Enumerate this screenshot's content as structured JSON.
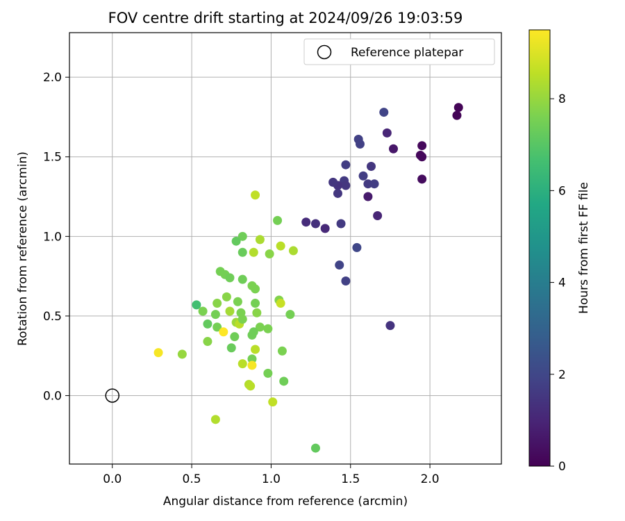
{
  "chart_data": {
    "type": "scatter",
    "title": "FOV centre drift starting at 2024/09/26 19:03:59",
    "xlabel": "Angular distance from reference (arcmin)",
    "ylabel": "Rotation from reference (arcmin)",
    "xlim": [
      -0.27,
      2.45
    ],
    "ylim": [
      -0.43,
      2.28
    ],
    "xticks": [
      "0.0",
      "0.5",
      "1.0",
      "1.5",
      "2.0"
    ],
    "yticks": [
      "0.0",
      "0.5",
      "1.0",
      "1.5",
      "2.0"
    ],
    "grid": true,
    "legend": {
      "placement": "top-right",
      "entries": [
        "Reference platepar"
      ]
    },
    "reference_point": {
      "x": 0.0,
      "y": 0.0
    },
    "colorbar": {
      "label": "Hours from first FF file",
      "range": [
        0,
        9.5
      ],
      "ticks": [
        "0",
        "2",
        "4",
        "6",
        "8"
      ],
      "colormap": "viridis"
    },
    "points": [
      {
        "x": 2.18,
        "y": 1.81,
        "h": 0.1
      },
      {
        "x": 2.17,
        "y": 1.76,
        "h": 0.1
      },
      {
        "x": 1.95,
        "y": 1.57,
        "h": 0.2
      },
      {
        "x": 1.94,
        "y": 1.51,
        "h": 0.2
      },
      {
        "x": 1.95,
        "y": 1.5,
        "h": 0.2
      },
      {
        "x": 1.95,
        "y": 1.36,
        "h": 0.3
      },
      {
        "x": 1.77,
        "y": 1.55,
        "h": 0.6
      },
      {
        "x": 1.73,
        "y": 1.65,
        "h": 1.0
      },
      {
        "x": 1.71,
        "y": 1.78,
        "h": 1.9
      },
      {
        "x": 1.61,
        "y": 1.25,
        "h": 0.7
      },
      {
        "x": 1.67,
        "y": 1.13,
        "h": 1.0
      },
      {
        "x": 1.75,
        "y": 0.44,
        "h": 1.4
      },
      {
        "x": 1.55,
        "y": 1.61,
        "h": 1.8
      },
      {
        "x": 1.56,
        "y": 1.58,
        "h": 1.8
      },
      {
        "x": 1.58,
        "y": 1.38,
        "h": 1.7
      },
      {
        "x": 1.63,
        "y": 1.44,
        "h": 1.5
      },
      {
        "x": 1.61,
        "y": 1.33,
        "h": 1.6
      },
      {
        "x": 1.65,
        "y": 1.33,
        "h": 1.7
      },
      {
        "x": 1.47,
        "y": 1.45,
        "h": 1.7
      },
      {
        "x": 1.46,
        "y": 1.35,
        "h": 1.6
      },
      {
        "x": 1.47,
        "y": 1.32,
        "h": 1.5
      },
      {
        "x": 1.42,
        "y": 1.32,
        "h": 1.4
      },
      {
        "x": 1.39,
        "y": 1.34,
        "h": 1.5
      },
      {
        "x": 1.42,
        "y": 1.27,
        "h": 1.5
      },
      {
        "x": 1.22,
        "y": 1.09,
        "h": 1.2
      },
      {
        "x": 1.28,
        "y": 1.08,
        "h": 1.3
      },
      {
        "x": 1.34,
        "y": 1.05,
        "h": 1.1
      },
      {
        "x": 1.44,
        "y": 1.08,
        "h": 1.6
      },
      {
        "x": 1.54,
        "y": 0.93,
        "h": 2.0
      },
      {
        "x": 1.43,
        "y": 0.82,
        "h": 1.9
      },
      {
        "x": 1.47,
        "y": 0.72,
        "h": 1.8
      },
      {
        "x": 0.9,
        "y": 1.26,
        "h": 8.6
      },
      {
        "x": 1.04,
        "y": 1.1,
        "h": 7.5
      },
      {
        "x": 0.82,
        "y": 1.0,
        "h": 7.4
      },
      {
        "x": 0.78,
        "y": 0.97,
        "h": 7.2
      },
      {
        "x": 0.93,
        "y": 0.98,
        "h": 8.3
      },
      {
        "x": 0.82,
        "y": 0.9,
        "h": 7.3
      },
      {
        "x": 0.89,
        "y": 0.9,
        "h": 8.4
      },
      {
        "x": 0.99,
        "y": 0.89,
        "h": 7.8
      },
      {
        "x": 1.06,
        "y": 0.94,
        "h": 8.5
      },
      {
        "x": 1.14,
        "y": 0.91,
        "h": 8.3
      },
      {
        "x": 0.68,
        "y": 0.78,
        "h": 7.5
      },
      {
        "x": 0.71,
        "y": 0.76,
        "h": 7.5
      },
      {
        "x": 0.74,
        "y": 0.74,
        "h": 7.4
      },
      {
        "x": 0.82,
        "y": 0.73,
        "h": 7.4
      },
      {
        "x": 0.88,
        "y": 0.69,
        "h": 7.6
      },
      {
        "x": 0.9,
        "y": 0.67,
        "h": 7.6
      },
      {
        "x": 0.72,
        "y": 0.62,
        "h": 7.8
      },
      {
        "x": 0.79,
        "y": 0.59,
        "h": 7.6
      },
      {
        "x": 0.9,
        "y": 0.58,
        "h": 7.5
      },
      {
        "x": 1.05,
        "y": 0.6,
        "h": 7.7
      },
      {
        "x": 1.06,
        "y": 0.58,
        "h": 8.7
      },
      {
        "x": 0.53,
        "y": 0.57,
        "h": 6.6
      },
      {
        "x": 0.66,
        "y": 0.58,
        "h": 7.8
      },
      {
        "x": 0.57,
        "y": 0.53,
        "h": 7.6
      },
      {
        "x": 0.74,
        "y": 0.53,
        "h": 8.2
      },
      {
        "x": 0.65,
        "y": 0.51,
        "h": 7.5
      },
      {
        "x": 0.81,
        "y": 0.52,
        "h": 7.6
      },
      {
        "x": 0.91,
        "y": 0.52,
        "h": 7.8
      },
      {
        "x": 1.12,
        "y": 0.51,
        "h": 7.5
      },
      {
        "x": 0.6,
        "y": 0.45,
        "h": 7.2
      },
      {
        "x": 0.66,
        "y": 0.43,
        "h": 7.5
      },
      {
        "x": 0.78,
        "y": 0.46,
        "h": 8.1
      },
      {
        "x": 0.8,
        "y": 0.45,
        "h": 8.5
      },
      {
        "x": 0.82,
        "y": 0.48,
        "h": 7.6
      },
      {
        "x": 0.93,
        "y": 0.43,
        "h": 7.6
      },
      {
        "x": 0.98,
        "y": 0.42,
        "h": 7.6
      },
      {
        "x": 0.7,
        "y": 0.4,
        "h": 9.5
      },
      {
        "x": 0.77,
        "y": 0.37,
        "h": 7.4
      },
      {
        "x": 0.88,
        "y": 0.38,
        "h": 7.4
      },
      {
        "x": 0.89,
        "y": 0.4,
        "h": 7.4
      },
      {
        "x": 0.6,
        "y": 0.34,
        "h": 7.8
      },
      {
        "x": 0.75,
        "y": 0.3,
        "h": 7.3
      },
      {
        "x": 0.9,
        "y": 0.29,
        "h": 8.5
      },
      {
        "x": 1.07,
        "y": 0.28,
        "h": 7.6
      },
      {
        "x": 0.29,
        "y": 0.27,
        "h": 9.4
      },
      {
        "x": 0.44,
        "y": 0.26,
        "h": 8.0
      },
      {
        "x": 0.88,
        "y": 0.23,
        "h": 7.5
      },
      {
        "x": 0.82,
        "y": 0.2,
        "h": 8.5
      },
      {
        "x": 0.88,
        "y": 0.19,
        "h": 9.4
      },
      {
        "x": 0.98,
        "y": 0.14,
        "h": 7.5
      },
      {
        "x": 1.08,
        "y": 0.09,
        "h": 7.4
      },
      {
        "x": 0.86,
        "y": 0.07,
        "h": 8.4
      },
      {
        "x": 0.87,
        "y": 0.06,
        "h": 8.5
      },
      {
        "x": 1.01,
        "y": -0.04,
        "h": 8.6
      },
      {
        "x": 0.65,
        "y": -0.15,
        "h": 8.4
      },
      {
        "x": 1.28,
        "y": -0.33,
        "h": 7.2
      }
    ]
  }
}
